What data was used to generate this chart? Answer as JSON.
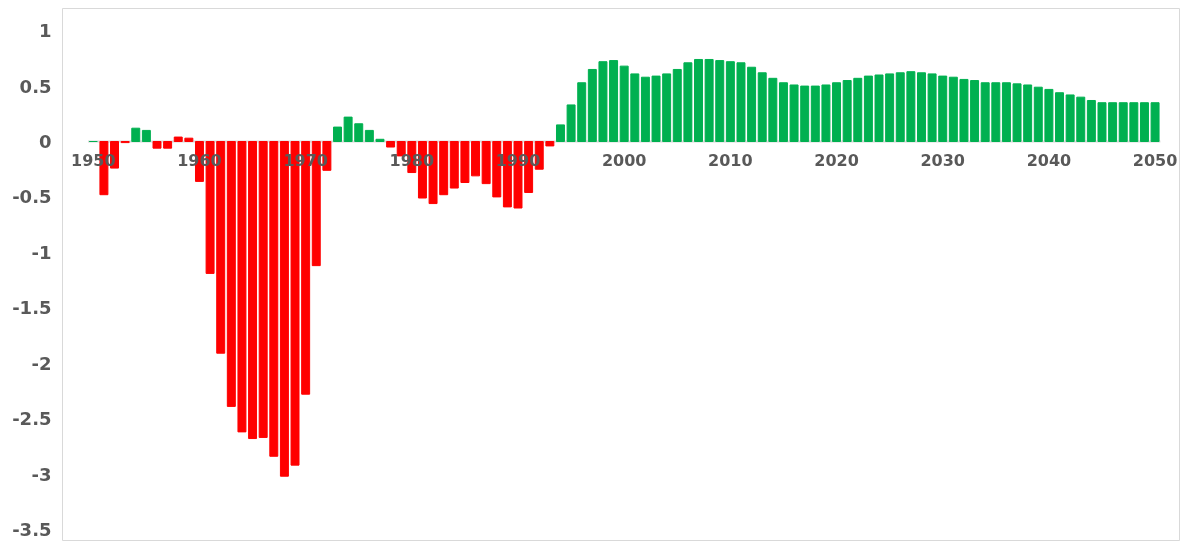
{
  "chart_data": {
    "type": "bar",
    "categories": [
      "1950",
      null,
      null,
      null,
      null,
      null,
      null,
      null,
      null,
      null,
      "1960",
      null,
      null,
      null,
      null,
      null,
      null,
      null,
      null,
      null,
      "1970",
      null,
      null,
      null,
      null,
      null,
      null,
      null,
      null,
      null,
      "1980",
      null,
      null,
      null,
      null,
      null,
      null,
      null,
      null,
      null,
      "1990",
      null,
      null,
      null,
      null,
      null,
      null,
      null,
      null,
      null,
      "2000",
      null,
      null,
      null,
      null,
      null,
      null,
      null,
      null,
      null,
      "2010",
      null,
      null,
      null,
      null,
      null,
      null,
      null,
      null,
      null,
      "2020",
      null,
      null,
      null,
      null,
      null,
      null,
      null,
      null,
      null,
      "2030",
      null,
      null,
      null,
      null,
      null,
      null,
      null,
      null,
      null,
      "2040",
      null,
      null,
      null,
      null,
      null,
      null,
      null,
      null,
      null,
      "2050"
    ],
    "values": [
      0,
      -0.48,
      -0.24,
      -0.01,
      0.12,
      0.1,
      -0.06,
      -0.06,
      0.04,
      0.03,
      -0.36,
      -1.19,
      -1.91,
      -2.39,
      -2.62,
      -2.68,
      -2.67,
      -2.84,
      -3.02,
      -2.92,
      -2.28,
      -1.12,
      -0.26,
      0.13,
      0.22,
      0.16,
      0.1,
      0.02,
      -0.05,
      -0.13,
      -0.28,
      -0.51,
      -0.56,
      -0.48,
      -0.42,
      -0.37,
      -0.31,
      -0.38,
      -0.5,
      -0.59,
      -0.6,
      -0.46,
      -0.25,
      -0.04,
      0.15,
      0.33,
      0.53,
      0.65,
      0.72,
      0.73,
      0.68,
      0.61,
      0.58,
      0.59,
      0.61,
      0.65,
      0.71,
      0.74,
      0.74,
      0.73,
      0.72,
      0.71,
      0.67,
      0.62,
      0.57,
      0.53,
      0.51,
      0.5,
      0.5,
      0.51,
      0.53,
      0.55,
      0.57,
      0.59,
      0.6,
      0.61,
      0.62,
      0.63,
      0.62,
      0.61,
      0.59,
      0.58,
      0.56,
      0.55,
      0.53,
      0.53,
      0.53,
      0.52,
      0.51,
      0.49,
      0.47,
      0.44,
      0.42,
      0.4,
      0.37,
      0.35,
      0.35,
      0.35,
      0.35,
      0.35,
      0.35
    ],
    "colors": [
      "#00b050",
      "#ff0000",
      "#ff0000",
      "#ff0000",
      "#00b050",
      "#00b050",
      "#ff0000",
      "#ff0000",
      "#ff0000",
      "#ff0000",
      "#ff0000",
      "#ff0000",
      "#ff0000",
      "#ff0000",
      "#ff0000",
      "#ff0000",
      "#ff0000",
      "#ff0000",
      "#ff0000",
      "#ff0000",
      "#ff0000",
      "#ff0000",
      "#ff0000",
      "#00b050",
      "#00b050",
      "#00b050",
      "#00b050",
      "#00b050",
      "#ff0000",
      "#ff0000",
      "#ff0000",
      "#ff0000",
      "#ff0000",
      "#ff0000",
      "#ff0000",
      "#ff0000",
      "#ff0000",
      "#ff0000",
      "#ff0000",
      "#ff0000",
      "#ff0000",
      "#ff0000",
      "#ff0000",
      "#ff0000",
      "#00b050",
      "#00b050",
      "#00b050",
      "#00b050",
      "#00b050",
      "#00b050",
      "#00b050",
      "#00b050",
      "#00b050",
      "#00b050",
      "#00b050",
      "#00b050",
      "#00b050",
      "#00b050",
      "#00b050",
      "#00b050",
      "#00b050",
      "#00b050",
      "#00b050",
      "#00b050",
      "#00b050",
      "#00b050",
      "#00b050",
      "#00b050",
      "#00b050",
      "#00b050",
      "#00b050",
      "#00b050",
      "#00b050",
      "#00b050",
      "#00b050",
      "#00b050",
      "#00b050",
      "#00b050",
      "#00b050",
      "#00b050",
      "#00b050",
      "#00b050",
      "#00b050",
      "#00b050",
      "#00b050",
      "#00b050",
      "#00b050",
      "#00b050",
      "#00b050",
      "#00b050",
      "#00b050",
      "#00b050",
      "#00b050",
      "#00b050",
      "#00b050",
      "#00b050",
      "#00b050",
      "#00b050",
      "#00b050",
      "#00b050",
      "#00b050"
    ],
    "ylim": [
      -3.6,
      1.2
    ],
    "yticks": [
      {
        "value": 1,
        "label": "1"
      },
      {
        "value": 0.5,
        "label": "0.5"
      },
      {
        "value": 0,
        "label": "0"
      },
      {
        "value": -0.5,
        "label": "-0.5"
      },
      {
        "value": -1,
        "label": "-1"
      },
      {
        "value": -1.5,
        "label": "-1.5"
      },
      {
        "value": -2,
        "label": "-2"
      },
      {
        "value": -2.5,
        "label": "-2.5"
      },
      {
        "value": -3,
        "label": "-3"
      },
      {
        "value": -3.5,
        "label": "-3.5"
      }
    ],
    "grid": false
  }
}
